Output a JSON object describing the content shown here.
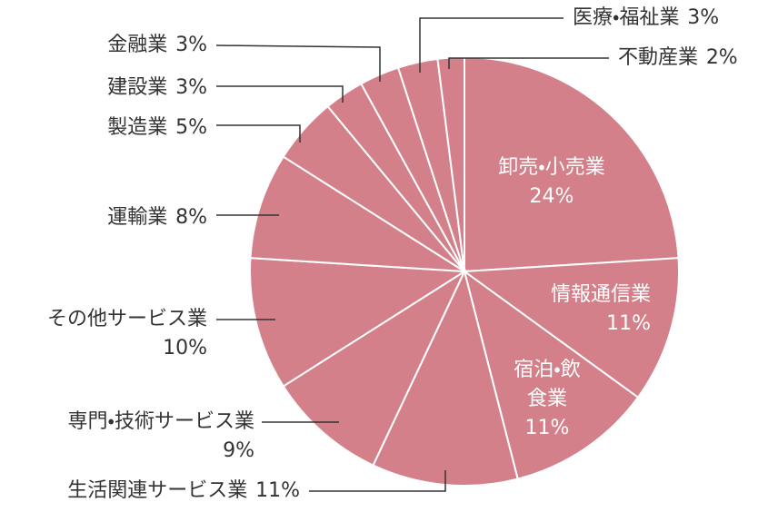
{
  "chart_data": {
    "type": "pie",
    "categories": [
      "卸売・小売業",
      "情報通信業",
      "宿泊・飲食業",
      "生活関連サービス業",
      "専門・技術サービス業",
      "その他サービス業",
      "運輸業",
      "製造業",
      "建設業",
      "金融業",
      "医療・福祉業",
      "不動産業"
    ],
    "values": [
      24,
      11,
      11,
      11,
      9,
      10,
      8,
      5,
      3,
      3,
      3,
      2
    ],
    "value_labels": [
      "24%",
      "11%",
      "11%",
      "11%",
      "9%",
      "10%",
      "8%",
      "5%",
      "3%",
      "3%",
      "3%",
      "2%"
    ],
    "color": "#d4808a"
  }
}
